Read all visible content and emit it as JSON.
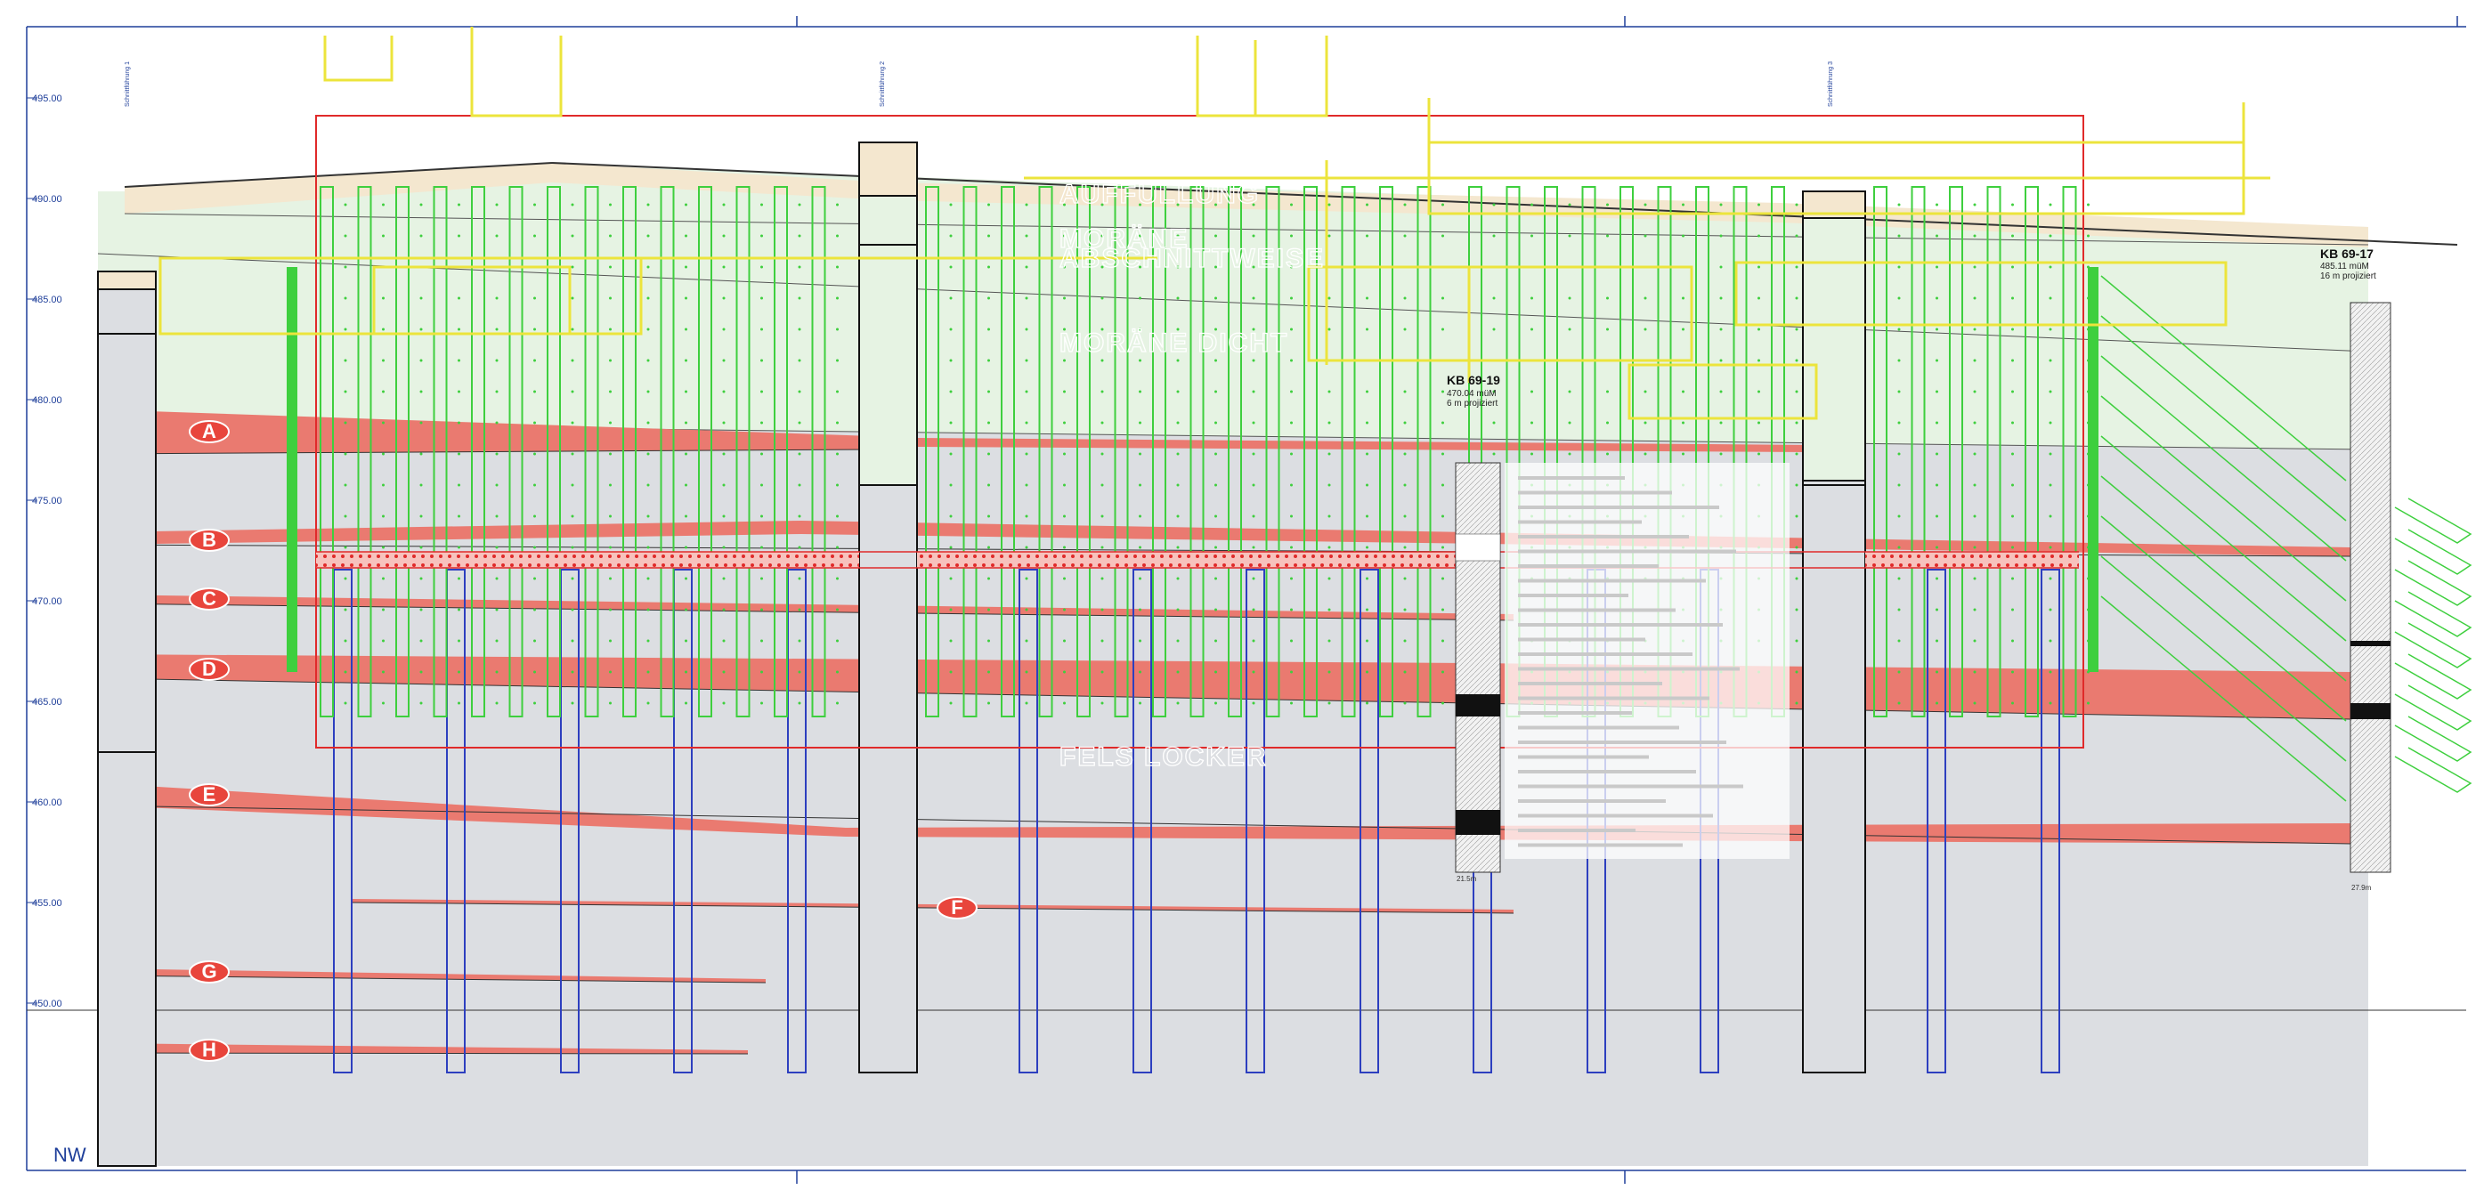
{
  "orientation_label": "NW",
  "elevations": [
    "495.00",
    "490.00",
    "485.00",
    "480.00",
    "475.00",
    "470.00",
    "465.00",
    "460.00",
    "455.00",
    "450.00"
  ],
  "layers": [
    "A",
    "B",
    "C",
    "D",
    "E",
    "F",
    "G",
    "H"
  ],
  "units": {
    "fill": "AUFFÜLLUNG",
    "moraine_soft": "MORÄNE",
    "moraine_soft_sub": "ABSCHNITTWEISE",
    "moraine_dense": "MORÄNE DICHT",
    "bedrock": "FELS LOCKER"
  },
  "section_markers": [
    "Schnittführung 1",
    "Schnittführung 2",
    "Schnittführung 3"
  ],
  "boreholes": [
    {
      "id": "KB 69-19",
      "elevation": "470.04 müM",
      "offset": "6 m projiziert",
      "depth": "21.5m"
    },
    {
      "id": "KB 69-17",
      "elevation": "485.11 müM",
      "offset": "16 m projiziert",
      "depth": "27.9m"
    }
  ],
  "colors": {
    "background": "#ffffff",
    "bedrock": "#dcdee2",
    "moraine": "#e6f3e3",
    "fill": "#f4e7cf",
    "clay_layer": "#ea7a70",
    "soldier_pile": "#3ecf3e",
    "micropile": "#2d3fbf",
    "structure": "#ece43c",
    "excavation_outline": "#e02a2a",
    "axis": "#1f3f9a"
  }
}
